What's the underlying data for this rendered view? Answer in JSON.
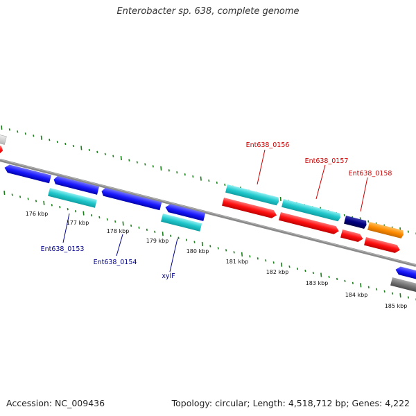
{
  "title": "Enterobacter sp. 638, complete genome",
  "footer": {
    "accession": "Accession: NC_009436",
    "topology": "Topology: circular; Length: 4,518,712 bp; Genes: 4,222"
  },
  "scale_ticks": [
    "176 kbp",
    "177 kbp",
    "178 kbp",
    "179 kbp",
    "180 kbp",
    "181 kbp",
    "182 kbp",
    "183 kbp",
    "184 kbp",
    "185 kbp"
  ],
  "gene_labels": {
    "top": [
      "Ent638_0156",
      "Ent638_0157",
      "Ent638_0158"
    ],
    "bottom": [
      "Ent638_0153",
      "Ent638_0154",
      "xylF"
    ]
  },
  "colors": {
    "backbone": "#7a7a7a",
    "tick_green": "#1a7f1a",
    "blue": "#1a1aff",
    "cyan": "#20c8cc",
    "red": "#ff1010",
    "navy": "#000080",
    "orange": "#ff8c00",
    "gray": "#777777",
    "light_gray": "#c8c8c8",
    "label_red": "#cc0000",
    "label_blue": "#00008b"
  }
}
